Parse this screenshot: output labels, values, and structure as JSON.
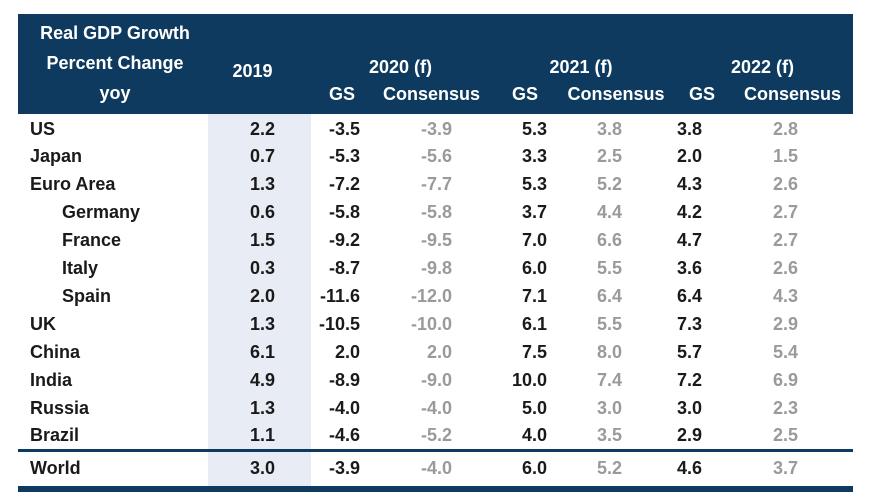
{
  "colors": {
    "header_bg": "#0e3a5f",
    "highlight_column": "#e8ecf4",
    "gs_text": "#1a1a1a",
    "consensus_text": "#9a9a9a",
    "header_text": "#ffffff"
  },
  "table": {
    "title_lines": [
      "Real GDP Growth",
      "Percent Change",
      "yoy"
    ],
    "col_2019": "2019",
    "year_groups": [
      {
        "label": "2020 (f)",
        "gs": "GS",
        "consensus": "Consensus"
      },
      {
        "label": "2021 (f)",
        "gs": "GS",
        "consensus": "Consensus"
      },
      {
        "label": "2022 (f)",
        "gs": "GS",
        "consensus": "Consensus"
      }
    ]
  },
  "chart_data": {
    "type": "table",
    "title": "Real GDP Growth",
    "subtitle": "Percent Change yoy",
    "columns": [
      "2019",
      "2020 (f) GS",
      "2020 (f) Consensus",
      "2021 (f) GS",
      "2021 (f) Consensus",
      "2022 (f) GS",
      "2022 (f) Consensus"
    ],
    "rows": [
      {
        "country": "US",
        "indent": false,
        "values": [
          "2.2",
          "-3.5",
          "-3.9",
          "5.3",
          "3.8",
          "3.8",
          "2.8"
        ]
      },
      {
        "country": "Japan",
        "indent": false,
        "values": [
          "0.7",
          "-5.3",
          "-5.6",
          "3.3",
          "2.5",
          "2.0",
          "1.5"
        ]
      },
      {
        "country": "Euro Area",
        "indent": false,
        "values": [
          "1.3",
          "-7.2",
          "-7.7",
          "5.3",
          "5.2",
          "4.3",
          "2.6"
        ]
      },
      {
        "country": "Germany",
        "indent": true,
        "values": [
          "0.6",
          "-5.8",
          "-5.8",
          "3.7",
          "4.4",
          "4.2",
          "2.7"
        ]
      },
      {
        "country": "France",
        "indent": true,
        "values": [
          "1.5",
          "-9.2",
          "-9.5",
          "7.0",
          "6.6",
          "4.7",
          "2.7"
        ]
      },
      {
        "country": "Italy",
        "indent": true,
        "values": [
          "0.3",
          "-8.7",
          "-9.8",
          "6.0",
          "5.5",
          "3.6",
          "2.6"
        ]
      },
      {
        "country": "Spain",
        "indent": true,
        "values": [
          "2.0",
          "-11.6",
          "-12.0",
          "7.1",
          "6.4",
          "6.4",
          "4.3"
        ]
      },
      {
        "country": "UK",
        "indent": false,
        "values": [
          "1.3",
          "-10.5",
          "-10.0",
          "6.1",
          "5.5",
          "7.3",
          "2.9"
        ]
      },
      {
        "country": "China",
        "indent": false,
        "values": [
          "6.1",
          "2.0",
          "2.0",
          "7.5",
          "8.0",
          "5.7",
          "5.4"
        ]
      },
      {
        "country": "India",
        "indent": false,
        "values": [
          "4.9",
          "-8.9",
          "-9.0",
          "10.0",
          "7.4",
          "7.2",
          "6.9"
        ]
      },
      {
        "country": "Russia",
        "indent": false,
        "values": [
          "1.3",
          "-4.0",
          "-4.0",
          "5.0",
          "3.0",
          "3.0",
          "2.3"
        ]
      },
      {
        "country": "Brazil",
        "indent": false,
        "values": [
          "1.1",
          "-4.6",
          "-5.2",
          "4.0",
          "3.5",
          "2.9",
          "2.5"
        ]
      }
    ],
    "total_row": {
      "country": "World",
      "values": [
        "3.0",
        "-3.9",
        "-4.0",
        "6.0",
        "5.2",
        "4.6",
        "3.7"
      ]
    }
  }
}
